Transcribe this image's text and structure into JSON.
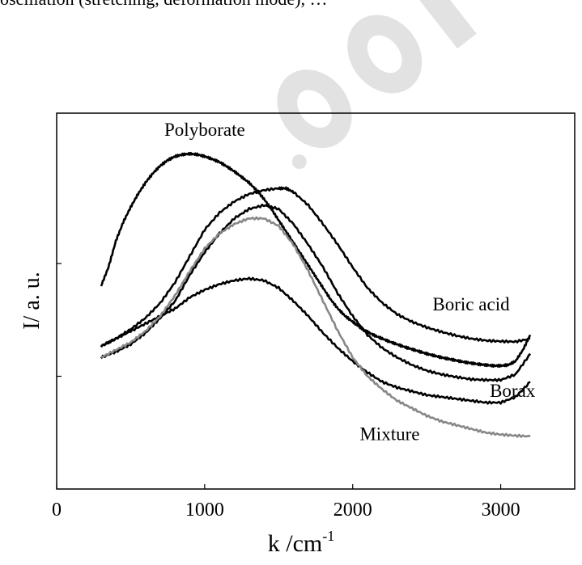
{
  "header_fragment": "oscillation (stretching, deformation mode), …",
  "chart_data": {
    "type": "line",
    "xlabel": "k /cm",
    "xlabel_superscript": "-1",
    "ylabel": "I/ a. u.",
    "xlim": [
      0,
      3500
    ],
    "ylim": [
      0,
      10
    ],
    "x_ticks": [
      0,
      1000,
      2000,
      3000
    ],
    "y_ticks": [
      3,
      6
    ],
    "y_tick_labels_shown": false,
    "grid": false,
    "legend": "none (series labelled inline on the plot)",
    "series": [
      {
        "name": "Polyborate",
        "color": "#000000",
        "x": [
          300,
          350,
          400,
          450,
          500,
          550,
          600,
          650,
          700,
          750,
          800,
          850,
          900,
          950,
          1000,
          1050,
          1100,
          1150,
          1200,
          1250,
          1300,
          1350,
          1400,
          1450,
          1500,
          1550,
          1600,
          1650,
          1700,
          1750,
          1800,
          1850,
          1900,
          1950,
          2000,
          2050,
          2100,
          2150,
          2200,
          2250,
          2300,
          2350,
          2400,
          2450,
          2500,
          2550,
          2600,
          2650,
          2700,
          2750,
          2800,
          2850,
          2900,
          2950,
          3000,
          3050,
          3100,
          3150,
          3200
        ],
        "y": [
          5.4,
          5.9,
          6.6,
          7.1,
          7.5,
          7.85,
          8.15,
          8.4,
          8.6,
          8.75,
          8.85,
          8.9,
          8.92,
          8.9,
          8.85,
          8.78,
          8.7,
          8.58,
          8.45,
          8.3,
          8.15,
          7.95,
          7.72,
          7.45,
          7.15,
          6.85,
          6.55,
          6.25,
          5.95,
          5.65,
          5.35,
          5.05,
          4.8,
          4.6,
          4.45,
          4.3,
          4.18,
          4.08,
          4.0,
          3.92,
          3.85,
          3.78,
          3.72,
          3.66,
          3.6,
          3.55,
          3.5,
          3.46,
          3.42,
          3.38,
          3.35,
          3.32,
          3.3,
          3.28,
          3.28,
          3.3,
          3.4,
          3.7,
          4.1
        ]
      },
      {
        "name": "Boric acid",
        "color": "#000000",
        "x": [
          300,
          400,
          500,
          600,
          700,
          800,
          900,
          1000,
          1100,
          1200,
          1300,
          1400,
          1500,
          1550,
          1600,
          1700,
          1800,
          1900,
          2000,
          2100,
          2200,
          2300,
          2400,
          2500,
          2600,
          2700,
          2800,
          2900,
          3000,
          3100,
          3200
        ],
        "y": [
          3.8,
          4.0,
          4.25,
          4.55,
          4.95,
          5.5,
          6.2,
          6.9,
          7.35,
          7.65,
          7.85,
          7.95,
          8.0,
          8.0,
          7.9,
          7.55,
          7.05,
          6.5,
          5.9,
          5.35,
          4.95,
          4.65,
          4.45,
          4.3,
          4.18,
          4.08,
          4.0,
          3.95,
          3.93,
          3.92,
          4.0
        ]
      },
      {
        "name": "Borax",
        "color": "#000000",
        "x": [
          300,
          400,
          500,
          600,
          700,
          800,
          900,
          1000,
          1100,
          1200,
          1300,
          1400,
          1500,
          1600,
          1700,
          1800,
          1900,
          2000,
          2100,
          2200,
          2300,
          2400,
          2500,
          2600,
          2700,
          2800,
          2900,
          3000,
          3100,
          3200
        ],
        "y": [
          3.5,
          3.65,
          3.85,
          4.15,
          4.55,
          5.0,
          5.7,
          6.3,
          6.8,
          7.2,
          7.45,
          7.55,
          7.45,
          7.05,
          6.5,
          5.9,
          5.2,
          4.6,
          4.1,
          3.75,
          3.5,
          3.3,
          3.15,
          3.05,
          2.98,
          2.92,
          2.9,
          2.9,
          3.05,
          3.6
        ]
      },
      {
        "name": "",
        "color": "#000000",
        "x": [
          300,
          400,
          500,
          600,
          700,
          800,
          900,
          1000,
          1100,
          1200,
          1300,
          1400,
          1500,
          1600,
          1700,
          1800,
          1900,
          2000,
          2100,
          2200,
          2300,
          2400,
          2500,
          2600,
          2700,
          2800,
          2900,
          3000,
          3100,
          3200
        ],
        "y": [
          3.8,
          4.0,
          4.2,
          4.4,
          4.6,
          4.8,
          5.1,
          5.3,
          5.45,
          5.55,
          5.6,
          5.55,
          5.35,
          5.0,
          4.6,
          4.15,
          3.75,
          3.4,
          3.1,
          2.85,
          2.7,
          2.6,
          2.5,
          2.45,
          2.4,
          2.35,
          2.3,
          2.3,
          2.45,
          2.85
        ]
      },
      {
        "name": "Mixture",
        "color": "#888888",
        "x": [
          300,
          400,
          500,
          600,
          700,
          800,
          900,
          1000,
          1100,
          1200,
          1300,
          1400,
          1500,
          1600,
          1700,
          1800,
          1900,
          2000,
          2100,
          2200,
          2300,
          2400,
          2500,
          2600,
          2700,
          2800,
          2900,
          3000,
          3100,
          3200
        ],
        "y": [
          3.5,
          3.7,
          3.9,
          4.2,
          4.6,
          5.15,
          5.8,
          6.4,
          6.8,
          7.05,
          7.2,
          7.2,
          7.0,
          6.5,
          5.8,
          5.0,
          4.2,
          3.5,
          3.0,
          2.65,
          2.35,
          2.15,
          1.95,
          1.8,
          1.7,
          1.6,
          1.5,
          1.45,
          1.42,
          1.4
        ]
      }
    ],
    "annotations": [
      {
        "text": "Polyborate",
        "x": 1000,
        "y": 9.4
      },
      {
        "text": "Boric acid",
        "x": 2800,
        "y": 4.75
      },
      {
        "text": "Borax",
        "x": 3080,
        "y": 2.45
      },
      {
        "text": "Mixture",
        "x": 2250,
        "y": 1.3
      }
    ]
  }
}
